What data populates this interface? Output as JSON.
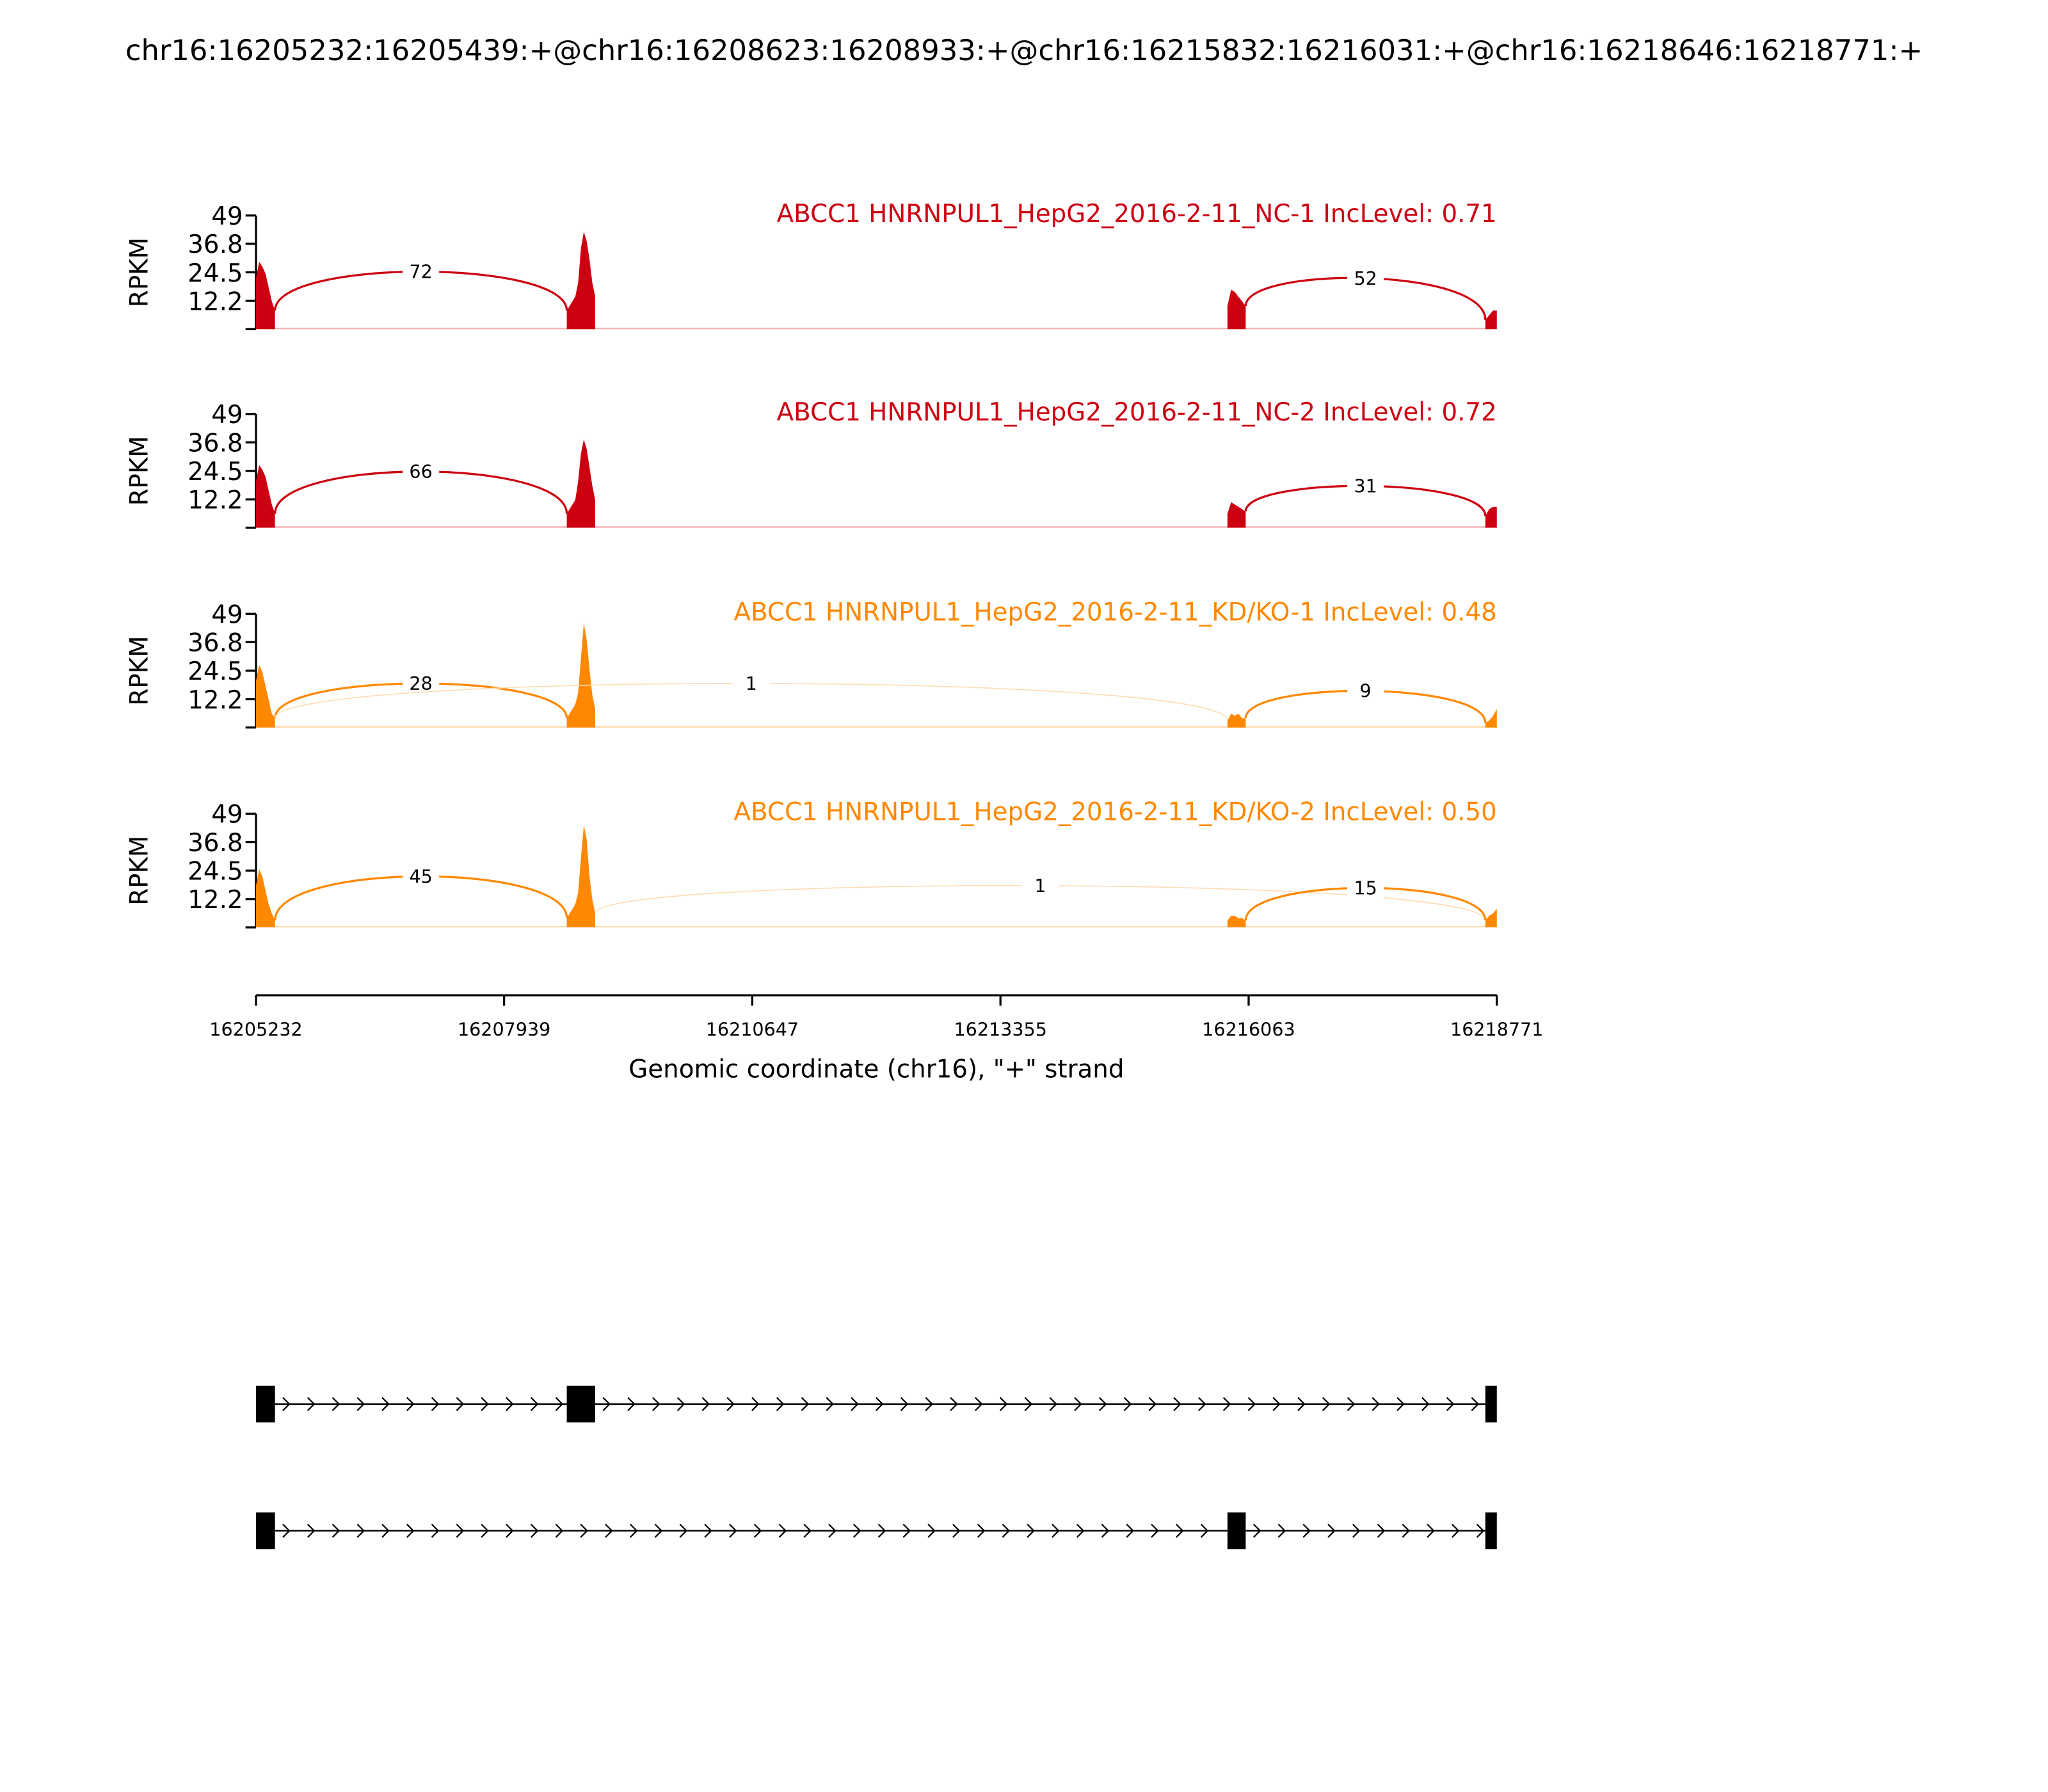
{
  "chart_data": {
    "type": "area",
    "title": "chr16:16205232:16205439:+@chr16:16208623:16208933:+@chr16:16215832:16216031:+@chr16:16218646:16218771:+",
    "xlabel": "Genomic coordinate (chr16), \"+\" strand",
    "ylabel": "RPKM",
    "xlim": [
      16205232,
      16218771
    ],
    "ylim": [
      0,
      49
    ],
    "yticks": [
      "49",
      "36.8",
      "24.5",
      "12.2"
    ],
    "ytick_values": [
      49,
      36.8,
      24.5,
      12.2
    ],
    "xticks": [
      "16205232",
      "16207939",
      "16210647",
      "16213355",
      "16216063",
      "16218771"
    ],
    "xtick_values": [
      16205232,
      16207939,
      16210647,
      16213355,
      16216063,
      16218771
    ],
    "exons": [
      [
        16205232,
        16205439
      ],
      [
        16208623,
        16208933
      ],
      [
        16215832,
        16216031
      ],
      [
        16218646,
        16218771
      ]
    ],
    "colors": {
      "nc": "#cc0011",
      "kd": "#ff8800",
      "nc_light": "#f2b3b8",
      "kd_light": "#ffdcb3"
    },
    "samples": [
      {
        "label": "ABCC1 HNRNPUL1_HepG2_2016-2-11_NC-1 IncLevel: 0.71",
        "group": "nc",
        "coverage": [
          [
            22,
            29,
            27,
            24,
            18,
            12,
            8
          ],
          [
            8,
            10,
            12,
            14,
            20,
            35,
            42,
            38,
            30,
            20,
            14
          ],
          [
            10,
            17,
            16,
            14,
            12,
            10
          ],
          [
            4,
            6,
            8,
            8
          ]
        ],
        "junctions": [
          {
            "from": 0,
            "to": 1,
            "count": "72",
            "apex": 24.8,
            "weight": "major"
          },
          {
            "from": 2,
            "to": 3,
            "count": "52",
            "apex": 22,
            "weight": "major"
          }
        ]
      },
      {
        "label": "ABCC1 HNRNPUL1_HepG2_2016-2-11_NC-2 IncLevel: 0.72",
        "group": "nc",
        "coverage": [
          [
            20,
            27,
            25,
            22,
            16,
            10,
            6
          ],
          [
            6,
            8,
            10,
            12,
            20,
            32,
            38,
            34,
            26,
            18,
            12
          ],
          [
            6,
            11,
            10,
            9,
            8,
            7
          ],
          [
            5,
            8,
            9,
            9
          ]
        ],
        "junctions": [
          {
            "from": 0,
            "to": 1,
            "count": "66",
            "apex": 24.2,
            "weight": "major"
          },
          {
            "from": 2,
            "to": 3,
            "count": "31",
            "apex": 18,
            "weight": "major"
          }
        ]
      },
      {
        "label": "ABCC1 HNRNPUL1_HepG2_2016-2-11_KD/KO-1 IncLevel: 0.48",
        "group": "kd",
        "coverage": [
          [
            20,
            27,
            24,
            18,
            12,
            6,
            4
          ],
          [
            4,
            6,
            8,
            10,
            15,
            30,
            45,
            38,
            25,
            14,
            8
          ],
          [
            3,
            6,
            5,
            6,
            4,
            4
          ],
          [
            2,
            3,
            5,
            8
          ]
        ],
        "junctions": [
          {
            "from": 0,
            "to": 1,
            "count": "28",
            "apex": 19,
            "weight": "major"
          },
          {
            "from": 0,
            "to": 2,
            "count": "1",
            "apex": 19,
            "weight": "minor"
          },
          {
            "from": 2,
            "to": 3,
            "count": "9",
            "apex": 15.8,
            "weight": "major"
          }
        ]
      },
      {
        "label": "ABCC1 HNRNPUL1_HepG2_2016-2-11_KD/KO-2 IncLevel: 0.50",
        "group": "kd",
        "coverage": [
          [
            18,
            25,
            22,
            16,
            10,
            6,
            3
          ],
          [
            4,
            6,
            8,
            10,
            15,
            30,
            44,
            38,
            22,
            12,
            6
          ],
          [
            3,
            5,
            5,
            4,
            4,
            3
          ],
          [
            3,
            5,
            6,
            8
          ]
        ],
        "junctions": [
          {
            "from": 0,
            "to": 1,
            "count": "45",
            "apex": 22,
            "weight": "major"
          },
          {
            "from": 1,
            "to": 3,
            "count": "1",
            "apex": 18,
            "weight": "minor"
          },
          {
            "from": 2,
            "to": 3,
            "count": "15",
            "apex": 17,
            "weight": "major"
          }
        ]
      }
    ],
    "isoforms": [
      [
        0,
        1,
        3
      ],
      [
        0,
        2,
        3
      ]
    ]
  }
}
